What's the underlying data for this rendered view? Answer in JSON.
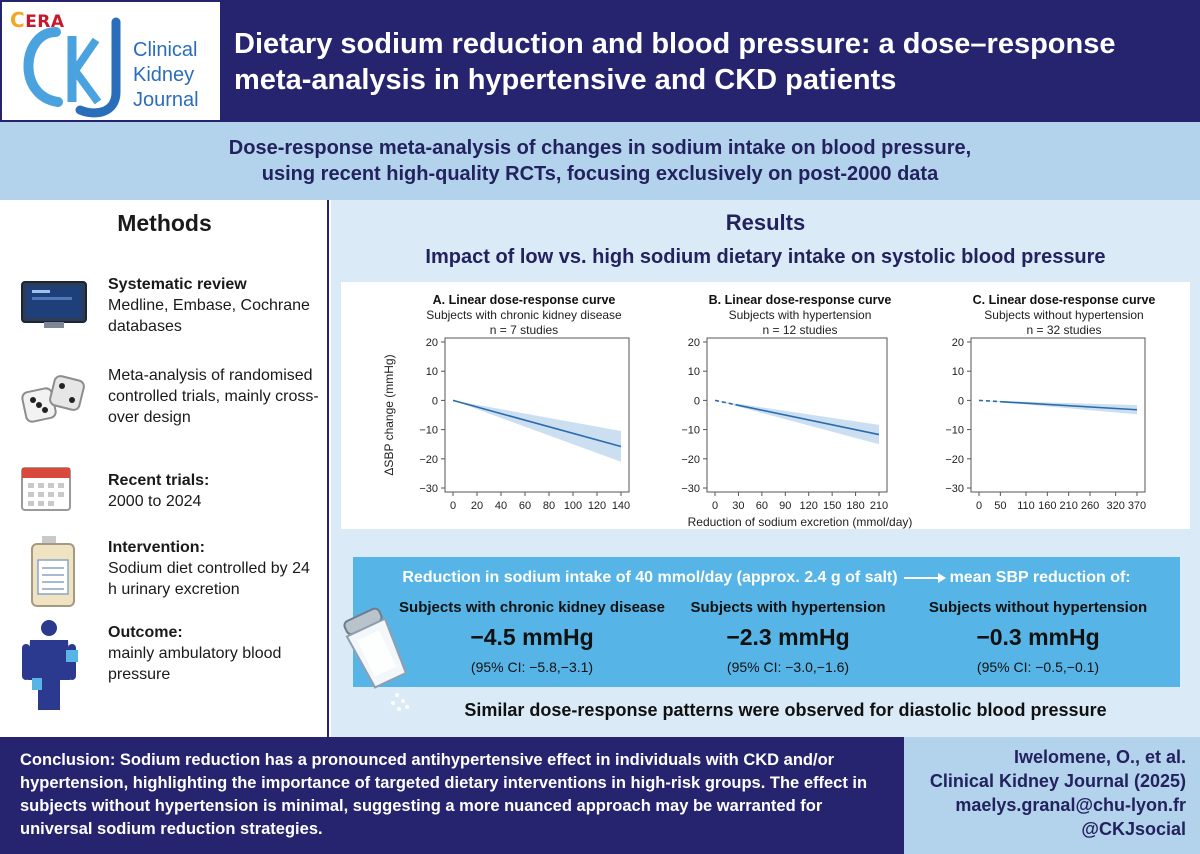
{
  "logo": {
    "era": "ERA",
    "text_lines": [
      "Clinical",
      "Kidney",
      "Journal"
    ]
  },
  "title": {
    "line1": "Dietary sodium reduction and blood pressure: a dose–response",
    "line2": "meta-analysis in hypertensive and CKD patients"
  },
  "subtitle": {
    "line1": "Dose-response meta-analysis of changes in sodium intake on blood pressure,",
    "line2": "using recent high-quality RCTs, focusing exclusively on post-2000 data"
  },
  "methods": {
    "heading": "Methods",
    "items": [
      {
        "icon": "monitor-icon",
        "bold": "Systematic review",
        "text": "Medline, Embase, Cochrane databases"
      },
      {
        "icon": "dice-icon",
        "bold": "",
        "text": "Meta-analysis of randomised controlled trials, mainly cross-over design"
      },
      {
        "icon": "calendar-icon",
        "bold": "Recent trials:",
        "text": "2000 to 2024"
      },
      {
        "icon": "urine-container-icon",
        "bold": "Intervention:",
        "text": "Sodium diet controlled by 24 h urinary excretion"
      },
      {
        "icon": "bp-monitor-person-icon",
        "bold": "Outcome:",
        "text": "mainly ambulatory blood pressure"
      }
    ]
  },
  "results": {
    "heading": "Results",
    "subheading": "Impact of low vs. high sodium dietary intake on systolic blood pressure",
    "footnote": "Similar dose-response patterns were observed for diastolic blood pressure"
  },
  "colors": {
    "navy": "#26246e",
    "light_blue": "#b3d3ec",
    "results_bg": "#daeaf6",
    "accent_blue": "#56b5e6",
    "line": "#2a6cad",
    "ci_band": "#c6dcef"
  },
  "chart_data": [
    {
      "type": "line",
      "title": "A. Linear dose-response curve",
      "subtitle": "Subjects with chronic kidney disease",
      "note": "n = 7 studies",
      "ylabel": "ΔSBP change (mmHg)",
      "xlabel": "",
      "ylim": [
        -30,
        20
      ],
      "yticks": [
        -30,
        -20,
        -10,
        0,
        10,
        20
      ],
      "xticks": [
        0,
        20,
        40,
        60,
        80,
        100,
        120,
        140
      ],
      "xlim": [
        0,
        140
      ],
      "series": [
        {
          "x": [
            0,
            140
          ],
          "y": [
            0,
            -15.8
          ],
          "ci_low": [
            0,
            -21
          ],
          "ci_high": [
            0,
            -10.5
          ],
          "dashed_until": 0
        }
      ]
    },
    {
      "type": "line",
      "title": "B. Linear dose-response curve",
      "subtitle": "Subjects with hypertension",
      "note": "n = 12 studies",
      "ylabel": "",
      "xlabel": "Reduction of sodium excretion (mmol/day)",
      "ylim": [
        -30,
        20
      ],
      "yticks": [
        -30,
        -20,
        -10,
        0,
        10,
        20
      ],
      "xticks": [
        0,
        30,
        60,
        90,
        120,
        150,
        180,
        210
      ],
      "xlim": [
        0,
        210
      ],
      "series": [
        {
          "x": [
            0,
            210
          ],
          "y": [
            0,
            -11.7
          ],
          "ci_low": [
            0,
            -15
          ],
          "ci_high": [
            0,
            -8.4
          ],
          "dashed_until": 30
        }
      ]
    },
    {
      "type": "line",
      "title": "C. Linear dose-response curve",
      "subtitle": "Subjects without hypertension",
      "note": "n = 32 studies",
      "ylabel": "",
      "xlabel": "",
      "ylim": [
        -30,
        20
      ],
      "yticks": [
        -30,
        -20,
        -10,
        0,
        10,
        20
      ],
      "xticks": [
        0,
        50,
        110,
        160,
        210,
        260,
        320,
        370
      ],
      "xlim": [
        0,
        370
      ],
      "series": [
        {
          "x": [
            0,
            370
          ],
          "y": [
            0,
            -3.2
          ],
          "ci_low": [
            0,
            -4.8
          ],
          "ci_high": [
            0,
            -1.6
          ],
          "dashed_until": 50
        }
      ]
    }
  ],
  "summary": {
    "head_left": "Reduction in sodium intake of 40 mmol/day (approx. 2.4 g of salt)",
    "head_right": "mean SBP reduction of:",
    "groups": [
      {
        "name": "Subjects with chronic kidney disease",
        "value": "−4.5 mmHg",
        "ci": "(95% CI: −5.8,−3.1)"
      },
      {
        "name": "Subjects with hypertension",
        "value": "−2.3 mmHg",
        "ci": "(95% CI: −3.0,−1.6)"
      },
      {
        "name": "Subjects without hypertension",
        "value": "−0.3 mmHg",
        "ci": "(95% CI: −0.5,−0.1)"
      }
    ]
  },
  "footer": {
    "conclusion": "Conclusion: Sodium reduction has a pronounced antihypertensive effect in individuals with CKD and/or hypertension, highlighting the importance of targeted dietary interventions in high-risk groups. The effect in subjects without hypertension is minimal, suggesting a more nuanced approach may be warranted for universal sodium reduction strategies.",
    "citation": [
      "Iwelomene, O., et al.",
      "Clinical Kidney Journal (2025)",
      "maelys.granal@chu-lyon.fr",
      "@CKJsocial"
    ]
  }
}
